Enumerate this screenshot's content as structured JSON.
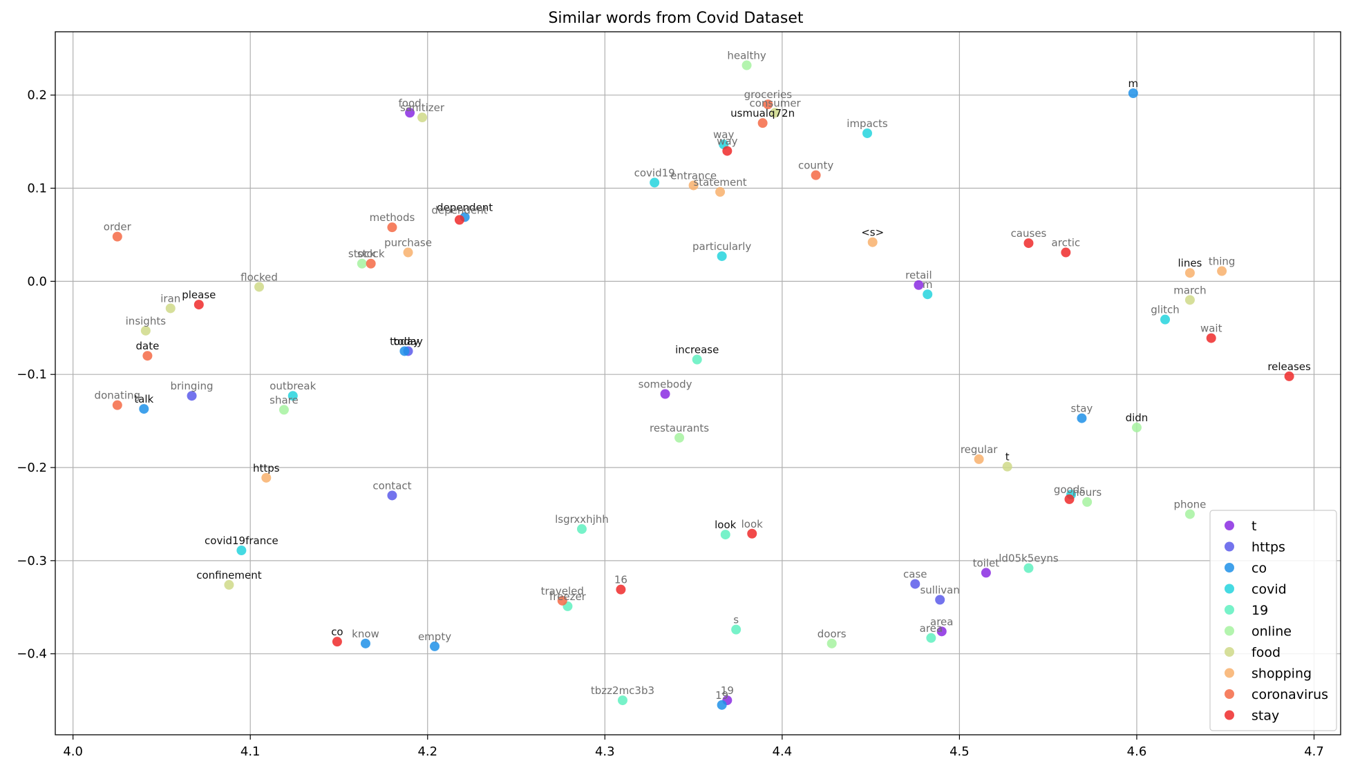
{
  "chart_data": {
    "type": "scatter",
    "title": "Similar words from Covid Dataset",
    "xlabel": "",
    "ylabel": "",
    "xlim": [
      3.99,
      4.715
    ],
    "ylim": [
      -0.487,
      0.268
    ],
    "x_ticks": [
      4.0,
      4.1,
      4.2,
      4.3,
      4.4,
      4.5,
      4.6,
      4.7
    ],
    "x_tick_labels": [
      "4.0",
      "4.1",
      "4.2",
      "4.3",
      "4.4",
      "4.5",
      "4.6",
      "4.7"
    ],
    "y_ticks": [
      -0.4,
      -0.3,
      -0.2,
      -0.1,
      0.0,
      0.1,
      0.2
    ],
    "y_tick_labels": [
      "−0.4",
      "−0.3",
      "−0.2",
      "−0.1",
      "0.0",
      "0.1",
      "0.2"
    ],
    "grid": true,
    "legend_position": "lower-right",
    "series": [
      {
        "name": "t",
        "color": "#8a2be2",
        "points": [
          {
            "x": 4.19,
            "y": 0.181,
            "label": "food",
            "emph": false
          },
          {
            "x": 4.477,
            "y": -0.004,
            "label": "retail",
            "emph": false
          },
          {
            "x": 4.334,
            "y": -0.121,
            "label": "somebody",
            "emph": false
          },
          {
            "x": 4.515,
            "y": -0.313,
            "label": "toilet",
            "emph": false
          },
          {
            "x": 4.49,
            "y": -0.376,
            "label": "area",
            "emph": false
          },
          {
            "x": 4.369,
            "y": -0.45,
            "label": "19",
            "emph": false
          }
        ]
      },
      {
        "name": "https",
        "color": "#5b5bea",
        "points": [
          {
            "x": 4.067,
            "y": -0.123,
            "label": "bringing",
            "emph": false
          },
          {
            "x": 4.18,
            "y": -0.23,
            "label": "contact",
            "emph": false
          },
          {
            "x": 4.475,
            "y": -0.325,
            "label": "case",
            "emph": false
          },
          {
            "x": 4.489,
            "y": -0.342,
            "label": "sullivan",
            "emph": false
          },
          {
            "x": 4.189,
            "y": -0.075,
            "label": "today",
            "emph": true
          }
        ]
      },
      {
        "name": "co",
        "color": "#1e90e8",
        "points": [
          {
            "x": 4.598,
            "y": 0.202,
            "label": "m",
            "emph": true
          },
          {
            "x": 4.221,
            "y": 0.069,
            "label": "dependent",
            "emph": true
          },
          {
            "x": 4.187,
            "y": -0.075,
            "label": "today",
            "emph": true
          },
          {
            "x": 4.04,
            "y": -0.137,
            "label": "talk",
            "emph": true
          },
          {
            "x": 4.569,
            "y": -0.147,
            "label": "stay",
            "emph": false
          },
          {
            "x": 4.165,
            "y": -0.389,
            "label": "know",
            "emph": false
          },
          {
            "x": 4.204,
            "y": -0.392,
            "label": "empty",
            "emph": false
          },
          {
            "x": 4.366,
            "y": -0.455,
            "label": "19",
            "emph": false
          }
        ]
      },
      {
        "name": "covid",
        "color": "#25d3dd",
        "points": [
          {
            "x": 4.448,
            "y": 0.159,
            "label": "impacts",
            "emph": false
          },
          {
            "x": 4.367,
            "y": 0.147,
            "label": "way",
            "emph": false
          },
          {
            "x": 4.328,
            "y": 0.106,
            "label": "covid19",
            "emph": false
          },
          {
            "x": 4.366,
            "y": 0.027,
            "label": "particularly",
            "emph": false
          },
          {
            "x": 4.482,
            "y": -0.014,
            "label": "m",
            "emph": false
          },
          {
            "x": 4.616,
            "y": -0.041,
            "label": "glitch",
            "emph": false
          },
          {
            "x": 4.124,
            "y": -0.123,
            "label": "outbreak",
            "emph": false
          },
          {
            "x": 4.095,
            "y": -0.289,
            "label": "covid19france",
            "emph": true
          },
          {
            "x": 4.563,
            "y": -0.229,
            "label": "",
            "emph": false
          }
        ]
      },
      {
        "name": "19",
        "color": "#5ff0c0",
        "points": [
          {
            "x": 4.352,
            "y": -0.084,
            "label": "increase",
            "emph": true
          },
          {
            "x": 4.287,
            "y": -0.266,
            "label": "lsgrxxhjhh",
            "emph": false
          },
          {
            "x": 4.368,
            "y": -0.272,
            "label": "look",
            "emph": true
          },
          {
            "x": 4.539,
            "y": -0.308,
            "label": "ld05k5eyns",
            "emph": false
          },
          {
            "x": 4.279,
            "y": -0.349,
            "label": "freezer",
            "emph": false
          },
          {
            "x": 4.374,
            "y": -0.374,
            "label": "s",
            "emph": false
          },
          {
            "x": 4.484,
            "y": -0.383,
            "label": "area",
            "emph": false
          },
          {
            "x": 4.31,
            "y": -0.45,
            "label": "tbzz2mc3b3",
            "emph": false
          }
        ]
      },
      {
        "name": "online",
        "color": "#a6f2a0",
        "points": [
          {
            "x": 4.38,
            "y": 0.232,
            "label": "healthy",
            "emph": false
          },
          {
            "x": 4.163,
            "y": 0.019,
            "label": "stock",
            "emph": false
          },
          {
            "x": 4.119,
            "y": -0.138,
            "label": "share",
            "emph": false
          },
          {
            "x": 4.342,
            "y": -0.168,
            "label": "restaurants",
            "emph": false
          },
          {
            "x": 4.572,
            "y": -0.237,
            "label": "hours",
            "emph": false
          },
          {
            "x": 4.63,
            "y": -0.25,
            "label": "phone",
            "emph": false
          },
          {
            "x": 4.428,
            "y": -0.389,
            "label": "doors",
            "emph": false
          },
          {
            "x": 4.6,
            "y": -0.157,
            "label": "didn",
            "emph": true
          }
        ]
      },
      {
        "name": "food",
        "color": "#cfd988",
        "points": [
          {
            "x": 4.197,
            "y": 0.176,
            "label": "sanitizer",
            "emph": false
          },
          {
            "x": 4.396,
            "y": 0.181,
            "label": "consumer",
            "emph": false
          },
          {
            "x": 4.105,
            "y": -0.006,
            "label": "flocked",
            "emph": false
          },
          {
            "x": 4.055,
            "y": -0.029,
            "label": "iran",
            "emph": false
          },
          {
            "x": 4.041,
            "y": -0.053,
            "label": "insights",
            "emph": false
          },
          {
            "x": 4.63,
            "y": -0.02,
            "label": "march",
            "emph": false
          },
          {
            "x": 4.527,
            "y": -0.199,
            "label": "t",
            "emph": true
          },
          {
            "x": 4.088,
            "y": -0.326,
            "label": "confinement",
            "emph": true
          }
        ]
      },
      {
        "name": "shopping",
        "color": "#f8b06c",
        "points": [
          {
            "x": 4.35,
            "y": 0.103,
            "label": "entrance",
            "emph": false
          },
          {
            "x": 4.365,
            "y": 0.096,
            "label": "statement",
            "emph": false
          },
          {
            "x": 4.189,
            "y": 0.031,
            "label": "purchase",
            "emph": false
          },
          {
            "x": 4.451,
            "y": 0.042,
            "label": "<s>",
            "emph": true
          },
          {
            "x": 4.63,
            "y": 0.009,
            "label": "lines",
            "emph": true
          },
          {
            "x": 4.648,
            "y": 0.011,
            "label": "thing",
            "emph": false
          },
          {
            "x": 4.511,
            "y": -0.191,
            "label": "regular",
            "emph": false
          },
          {
            "x": 4.109,
            "y": -0.211,
            "label": "https",
            "emph": true
          }
        ]
      },
      {
        "name": "coronavirus",
        "color": "#f46a45",
        "points": [
          {
            "x": 4.392,
            "y": 0.19,
            "label": "groceries",
            "emph": false
          },
          {
            "x": 4.389,
            "y": 0.17,
            "label": "usmualq72n",
            "emph": true
          },
          {
            "x": 4.419,
            "y": 0.114,
            "label": "county",
            "emph": false
          },
          {
            "x": 4.025,
            "y": 0.048,
            "label": "order",
            "emph": false
          },
          {
            "x": 4.18,
            "y": 0.058,
            "label": "methods",
            "emph": false
          },
          {
            "x": 4.168,
            "y": 0.019,
            "label": "stock",
            "emph": false
          },
          {
            "x": 4.042,
            "y": -0.08,
            "label": "date",
            "emph": true
          },
          {
            "x": 4.025,
            "y": -0.133,
            "label": "donating",
            "emph": false
          },
          {
            "x": 4.276,
            "y": -0.343,
            "label": "traveled",
            "emph": false
          }
        ]
      },
      {
        "name": "stay",
        "color": "#ee2a2a",
        "points": [
          {
            "x": 4.369,
            "y": 0.14,
            "label": "way",
            "emph": false
          },
          {
            "x": 4.218,
            "y": 0.066,
            "label": "dependent",
            "emph": false
          },
          {
            "x": 4.539,
            "y": 0.041,
            "label": "causes",
            "emph": false
          },
          {
            "x": 4.56,
            "y": 0.031,
            "label": "arctic",
            "emph": false
          },
          {
            "x": 4.071,
            "y": -0.025,
            "label": "please",
            "emph": true
          },
          {
            "x": 4.642,
            "y": -0.061,
            "label": "wait",
            "emph": false
          },
          {
            "x": 4.686,
            "y": -0.102,
            "label": "releases",
            "emph": true
          },
          {
            "x": 4.562,
            "y": -0.234,
            "label": "goods",
            "emph": false
          },
          {
            "x": 4.383,
            "y": -0.271,
            "label": "look",
            "emph": false
          },
          {
            "x": 4.309,
            "y": -0.331,
            "label": "16",
            "emph": false
          },
          {
            "x": 4.149,
            "y": -0.387,
            "label": "co",
            "emph": true
          }
        ]
      }
    ]
  }
}
